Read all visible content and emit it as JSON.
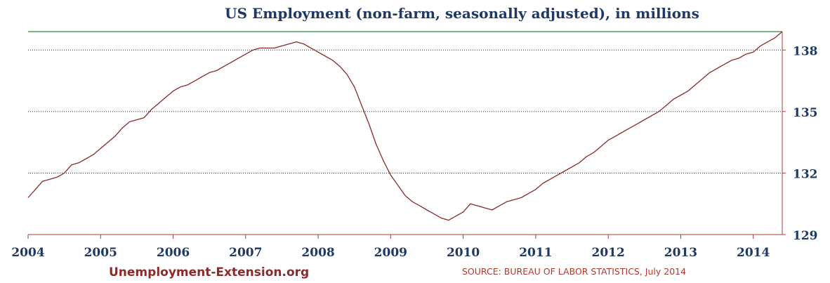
{
  "chart_data": {
    "type": "line",
    "title": "US Employment (non-farm, seasonally adjusted), in millions",
    "xlabel": "",
    "ylabel": "",
    "xlim": [
      2004.0,
      2014.4
    ],
    "ylim": [
      129,
      138.9
    ],
    "x_ticks": [
      "2004",
      "2005",
      "2006",
      "2007",
      "2008",
      "2009",
      "2010",
      "2011",
      "2012",
      "2013",
      "2014"
    ],
    "y_ticks": [
      "138",
      "135",
      "132",
      "129"
    ],
    "y_tick_values": [
      138,
      135,
      132,
      129
    ],
    "y_axis_position": "right",
    "grid": "horizontal dotted",
    "reference_line": 138.9,
    "reference_line_color": "#2e8b2e",
    "line_color": "#8b2a2a",
    "axis_color": "#a0403a",
    "text_color": "#1f3864",
    "series": [
      {
        "x": [
          2004.0,
          2004.1,
          2004.2,
          2004.3,
          2004.4,
          2004.5,
          2004.6,
          2004.7,
          2004.8,
          2004.9,
          2005.0,
          2005.1,
          2005.2,
          2005.3,
          2005.4,
          2005.5,
          2005.6,
          2005.7,
          2005.8,
          2005.9,
          2006.0,
          2006.1,
          2006.2,
          2006.3,
          2006.4,
          2006.5,
          2006.6,
          2006.7,
          2006.8,
          2006.9,
          2007.0,
          2007.1,
          2007.2,
          2007.3,
          2007.4,
          2007.5,
          2007.6,
          2007.7,
          2007.8,
          2007.9,
          2008.0,
          2008.1,
          2008.2,
          2008.3,
          2008.4,
          2008.5,
          2008.6,
          2008.7,
          2008.8,
          2008.9,
          2009.0,
          2009.1,
          2009.2,
          2009.3,
          2009.4,
          2009.5,
          2009.6,
          2009.7,
          2009.8,
          2009.9,
          2010.0,
          2010.1,
          2010.2,
          2010.3,
          2010.4,
          2010.5,
          2010.6,
          2010.7,
          2010.8,
          2010.9,
          2011.0,
          2011.1,
          2011.2,
          2011.3,
          2011.4,
          2011.5,
          2011.6,
          2011.7,
          2011.8,
          2011.9,
          2012.0,
          2012.1,
          2012.2,
          2012.3,
          2012.4,
          2012.5,
          2012.6,
          2012.7,
          2012.8,
          2012.9,
          2013.0,
          2013.1,
          2013.2,
          2013.3,
          2013.4,
          2013.5,
          2013.6,
          2013.7,
          2013.8,
          2013.9,
          2014.0,
          2014.1,
          2014.2,
          2014.3,
          2014.4
        ],
        "values": [
          130.8,
          131.2,
          131.6,
          131.7,
          131.8,
          132.0,
          132.4,
          132.5,
          132.7,
          132.9,
          133.2,
          133.5,
          133.8,
          134.2,
          134.5,
          134.6,
          134.7,
          135.1,
          135.4,
          135.7,
          136.0,
          136.2,
          136.3,
          136.5,
          136.7,
          136.9,
          137.0,
          137.2,
          137.4,
          137.6,
          137.8,
          138.0,
          138.1,
          138.1,
          138.1,
          138.2,
          138.3,
          138.4,
          138.3,
          138.1,
          137.9,
          137.7,
          137.5,
          137.2,
          136.8,
          136.2,
          135.3,
          134.4,
          133.4,
          132.6,
          131.9,
          131.4,
          130.9,
          130.6,
          130.4,
          130.2,
          130.0,
          129.8,
          129.7,
          129.9,
          130.1,
          130.5,
          130.4,
          130.3,
          130.2,
          130.4,
          130.6,
          130.7,
          130.8,
          131.0,
          131.2,
          131.5,
          131.7,
          131.9,
          132.1,
          132.3,
          132.5,
          132.8,
          133.0,
          133.3,
          133.6,
          133.8,
          134.0,
          134.2,
          134.4,
          134.6,
          134.8,
          135.0,
          135.3,
          135.6,
          135.8,
          136.0,
          136.3,
          136.6,
          136.9,
          137.1,
          137.3,
          137.5,
          137.6,
          137.8,
          137.9,
          138.2,
          138.4,
          138.6,
          138.9
        ]
      }
    ]
  },
  "footer": {
    "website": "Unemployment-Extension.org",
    "source": "SOURCE: BUREAU OF LABOR STATISTICS, July 2014"
  }
}
